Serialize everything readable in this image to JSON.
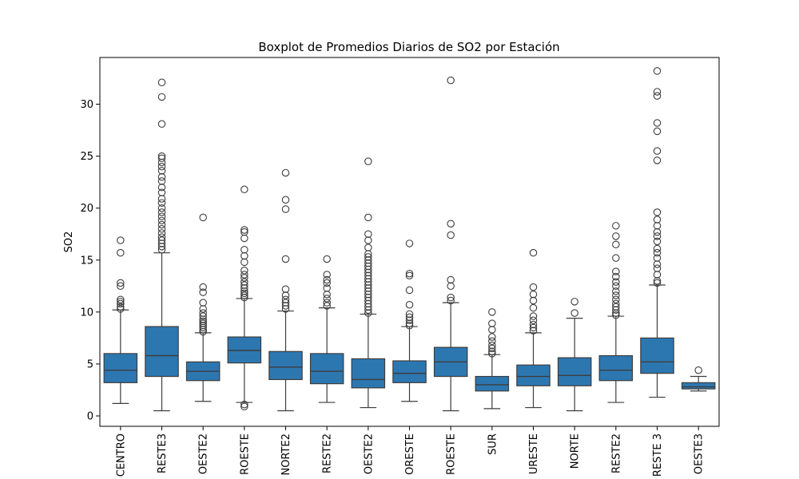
{
  "chart_data": {
    "type": "box",
    "title": "Boxplot de Promedios Diarios de SO2 por Estación",
    "xlabel": "",
    "ylabel": "SO2",
    "ylim": [
      -1.0,
      34.5
    ],
    "yticks": [
      0,
      5,
      10,
      15,
      20,
      25,
      30
    ],
    "grid": false,
    "box_color": "#2d77b1",
    "categories": [
      "CENTRO",
      "RESTE3",
      "OESTE2",
      "ROESTE",
      "NORTE2",
      "RESTE2",
      "OESTE2",
      "ORESTE",
      "ROESTE",
      "SUR",
      "URESTE",
      "NORTE",
      "RESTE2",
      "RESTE 3",
      "OESTE3"
    ],
    "boxes": [
      {
        "whislo": 1.2,
        "q1": 3.2,
        "med": 4.4,
        "q3": 6.0,
        "whishi": 10.2,
        "fliers": [
          10.3,
          10.5,
          10.8,
          11.0,
          11.2,
          12.5,
          12.8,
          15.7,
          16.9
        ]
      },
      {
        "whislo": 0.5,
        "q1": 3.8,
        "med": 5.8,
        "q3": 8.6,
        "whishi": 15.7,
        "fliers": [
          16.0,
          16.3,
          16.6,
          16.9,
          17.2,
          17.6,
          18.0,
          18.4,
          18.8,
          19.2,
          19.6,
          20.0,
          20.5,
          20.9,
          21.5,
          22.0,
          22.6,
          23.0,
          23.6,
          24.0,
          24.4,
          24.8,
          25.0,
          28.1,
          30.7,
          32.1
        ]
      },
      {
        "whislo": 1.4,
        "q1": 3.4,
        "med": 4.3,
        "q3": 5.2,
        "whishi": 8.0,
        "fliers": [
          8.1,
          8.3,
          8.5,
          8.7,
          8.9,
          9.1,
          9.3,
          9.6,
          9.9,
          10.3,
          10.9,
          11.9,
          12.4,
          19.1
        ]
      },
      {
        "whislo": 1.3,
        "q1": 5.1,
        "med": 6.3,
        "q3": 7.6,
        "whishi": 11.3,
        "fliers": [
          0.9,
          1.1,
          11.4,
          11.6,
          11.8,
          12.0,
          12.3,
          12.6,
          12.9,
          13.3,
          13.6,
          14.0,
          14.8,
          15.4,
          16.0,
          17.1,
          17.7,
          17.9,
          21.8
        ]
      },
      {
        "whislo": 0.5,
        "q1": 3.5,
        "med": 4.7,
        "q3": 6.2,
        "whishi": 10.1,
        "fliers": [
          10.3,
          10.6,
          10.9,
          11.2,
          11.6,
          12.2,
          15.1,
          19.9,
          20.8,
          23.4
        ]
      },
      {
        "whislo": 1.3,
        "q1": 3.1,
        "med": 4.3,
        "q3": 6.0,
        "whishi": 10.4,
        "fliers": [
          10.6,
          10.9,
          11.3,
          11.7,
          12.3,
          12.8,
          13.1,
          13.6,
          15.1
        ]
      },
      {
        "whislo": 0.8,
        "q1": 2.7,
        "med": 3.5,
        "q3": 5.5,
        "whishi": 9.8,
        "fliers": [
          9.9,
          10.2,
          10.5,
          10.8,
          11.1,
          11.4,
          11.7,
          12.0,
          12.3,
          12.6,
          12.9,
          13.2,
          13.5,
          13.8,
          14.1,
          14.4,
          14.7,
          15.0,
          15.3,
          15.6,
          16.2,
          16.9,
          17.5,
          19.1,
          24.5
        ]
      },
      {
        "whislo": 1.4,
        "q1": 3.2,
        "med": 4.1,
        "q3": 5.3,
        "whishi": 8.6,
        "fliers": [
          8.7,
          8.9,
          9.2,
          9.5,
          9.8,
          10.7,
          12.1,
          13.5,
          13.7,
          16.6
        ]
      },
      {
        "whislo": 0.5,
        "q1": 3.8,
        "med": 5.2,
        "q3": 6.6,
        "whishi": 10.9,
        "fliers": [
          11.1,
          11.4,
          12.5,
          13.1,
          17.4,
          18.5,
          32.3
        ]
      },
      {
        "whislo": 0.7,
        "q1": 2.4,
        "med": 3.0,
        "q3": 3.8,
        "whishi": 5.9,
        "fliers": [
          6.0,
          6.2,
          6.5,
          6.8,
          7.2,
          7.6,
          8.3,
          8.9,
          10.0
        ]
      },
      {
        "whislo": 0.8,
        "q1": 2.9,
        "med": 3.8,
        "q3": 4.9,
        "whishi": 8.0,
        "fliers": [
          8.2,
          8.5,
          8.8,
          9.2,
          9.6,
          10.4,
          11.1,
          11.7,
          12.4,
          15.7
        ]
      },
      {
        "whislo": 0.5,
        "q1": 2.9,
        "med": 3.9,
        "q3": 5.6,
        "whishi": 9.4,
        "fliers": [
          9.9,
          11.0
        ]
      },
      {
        "whislo": 1.3,
        "q1": 3.4,
        "med": 4.4,
        "q3": 5.8,
        "whishi": 9.6,
        "fliers": [
          9.7,
          9.9,
          10.2,
          10.5,
          10.8,
          11.2,
          11.6,
          12.0,
          12.5,
          12.9,
          13.4,
          13.9,
          15.2,
          16.5,
          17.3,
          18.3
        ]
      },
      {
        "whislo": 1.8,
        "q1": 4.1,
        "med": 5.2,
        "q3": 7.5,
        "whishi": 12.6,
        "fliers": [
          12.8,
          13.0,
          13.6,
          14.2,
          14.6,
          15.2,
          15.7,
          16.1,
          16.8,
          17.3,
          17.7,
          18.3,
          18.9,
          19.6,
          24.6,
          25.5,
          27.4,
          28.2,
          30.8,
          31.2,
          33.2
        ]
      },
      {
        "whislo": 2.4,
        "q1": 2.6,
        "med": 2.8,
        "q3": 3.2,
        "whishi": 3.8,
        "fliers": [
          4.4
        ]
      }
    ]
  }
}
